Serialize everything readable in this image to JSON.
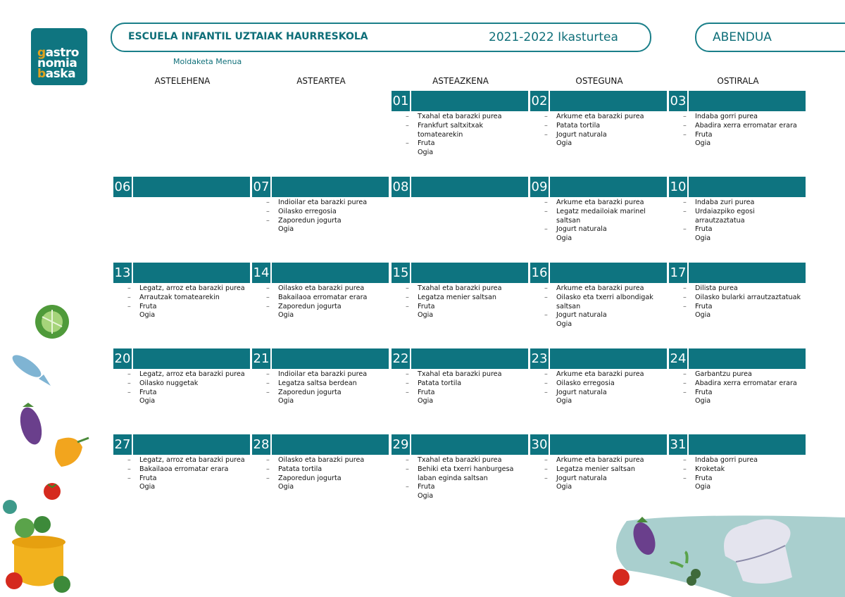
{
  "logo": {
    "lines": [
      "gastro",
      "nomia",
      "baska"
    ]
  },
  "header": {
    "school": "ESCUELA INFANTIL UZTAIAK HAURRESKOLA",
    "year": "2021-2022 Ikasturtea",
    "month": "ABENDUA",
    "subtitle": "Moldaketa Menua"
  },
  "colors": {
    "accent": "#0e7480",
    "title": "#0f6f79",
    "logo_highlight": "#e2a21d"
  },
  "weekdays": [
    "ASTELEHENA",
    "ASTEARTEA",
    "ASTEAZKENA",
    "OSTEGUNA",
    "OSTIRALA"
  ],
  "weeks": [
    [
      null,
      null,
      {
        "day": "01",
        "items": [
          {
            "text": "Txahal eta barazki purea",
            "dash": true
          },
          {
            "text": "Frankfurt saltxitxak\ntomatearekin",
            "dash": true
          },
          {
            "text": "Fruta",
            "dash": true
          },
          {
            "text": "Ogia",
            "dash": false
          }
        ]
      },
      {
        "day": "02",
        "items": [
          {
            "text": "Arkume eta barazki purea",
            "dash": true
          },
          {
            "text": "Patata tortila",
            "dash": true
          },
          {
            "text": "Jogurt naturala",
            "dash": true
          },
          {
            "text": "Ogia",
            "dash": false
          }
        ]
      },
      {
        "day": "03",
        "items": [
          {
            "text": "Indaba gorri purea",
            "dash": true
          },
          {
            "text": "Abadira xerra erromatar erara",
            "dash": true
          },
          {
            "text": "Fruta",
            "dash": true
          },
          {
            "text": "Ogia",
            "dash": false
          }
        ]
      }
    ],
    [
      {
        "day": "06",
        "items": []
      },
      {
        "day": "07",
        "items": [
          {
            "text": "Indioilar eta barazki purea",
            "dash": true
          },
          {
            "text": "Oilasko erregosia",
            "dash": true
          },
          {
            "text": "Zaporedun jogurta",
            "dash": true
          },
          {
            "text": "Ogia",
            "dash": false
          }
        ]
      },
      {
        "day": "08",
        "items": []
      },
      {
        "day": "09",
        "items": [
          {
            "text": "Arkume eta barazki purea",
            "dash": true
          },
          {
            "text": "Legatz medailoiak marinel\nsaltsan",
            "dash": true
          },
          {
            "text": "Jogurt naturala",
            "dash": true
          },
          {
            "text": "Ogia",
            "dash": false
          }
        ]
      },
      {
        "day": "10",
        "items": [
          {
            "text": "Indaba zuri purea",
            "dash": true
          },
          {
            "text": "Urdaiazpiko egosi\narrautzaztatua",
            "dash": true
          },
          {
            "text": "Fruta",
            "dash": true
          },
          {
            "text": "Ogia",
            "dash": false
          }
        ]
      }
    ],
    [
      {
        "day": "13",
        "items": [
          {
            "text": "Legatz, arroz eta barazki purea",
            "dash": true
          },
          {
            "text": "Arrautzak tomatearekin",
            "dash": true
          },
          {
            "text": "Fruta",
            "dash": true
          },
          {
            "text": "Ogia",
            "dash": false
          }
        ]
      },
      {
        "day": "14",
        "items": [
          {
            "text": "Oilasko eta barazki purea",
            "dash": true
          },
          {
            "text": "Bakailaoa erromatar erara",
            "dash": true
          },
          {
            "text": "Zaporedun jogurta",
            "dash": true
          },
          {
            "text": "Ogia",
            "dash": false
          }
        ]
      },
      {
        "day": "15",
        "items": [
          {
            "text": "Txahal eta barazki purea",
            "dash": true
          },
          {
            "text": "Legatza menier saltsan",
            "dash": true
          },
          {
            "text": "Fruta",
            "dash": true
          },
          {
            "text": "Ogia",
            "dash": false
          }
        ]
      },
      {
        "day": "16",
        "items": [
          {
            "text": "Arkume eta barazki purea",
            "dash": true
          },
          {
            "text": "Oilasko eta txerri albondigak\nsaltsan",
            "dash": true
          },
          {
            "text": "Jogurt naturala",
            "dash": true
          },
          {
            "text": "Ogia",
            "dash": false
          }
        ]
      },
      {
        "day": "17",
        "items": [
          {
            "text": "Dilista purea",
            "dash": true
          },
          {
            "text": "Oilasko bularki arrautzaztatuak",
            "dash": true
          },
          {
            "text": "Fruta",
            "dash": true
          },
          {
            "text": "Ogia",
            "dash": false
          }
        ]
      }
    ],
    [
      {
        "day": "20",
        "items": [
          {
            "text": "Legatz, arroz eta barazki purea",
            "dash": true
          },
          {
            "text": "Oilasko nuggetak",
            "dash": true
          },
          {
            "text": "Fruta",
            "dash": true
          },
          {
            "text": "Ogia",
            "dash": false
          }
        ]
      },
      {
        "day": "21",
        "items": [
          {
            "text": "Indioilar eta barazki purea",
            "dash": true
          },
          {
            "text": "Legatza saltsa berdean",
            "dash": true
          },
          {
            "text": "Zaporedun jogurta",
            "dash": true
          },
          {
            "text": "Ogia",
            "dash": false
          }
        ]
      },
      {
        "day": "22",
        "items": [
          {
            "text": "Txahal eta barazki purea",
            "dash": true
          },
          {
            "text": "Patata tortila",
            "dash": true
          },
          {
            "text": "Fruta",
            "dash": true
          },
          {
            "text": "Ogia",
            "dash": false
          }
        ]
      },
      {
        "day": "23",
        "items": [
          {
            "text": "Arkume eta barazki purea",
            "dash": true
          },
          {
            "text": "Oilasko erregosia",
            "dash": true
          },
          {
            "text": "Jogurt naturala",
            "dash": true
          },
          {
            "text": "Ogia",
            "dash": false
          }
        ]
      },
      {
        "day": "24",
        "items": [
          {
            "text": "Garbantzu purea",
            "dash": true
          },
          {
            "text": "Abadira xerra erromatar erara",
            "dash": true
          },
          {
            "text": "Fruta",
            "dash": true
          },
          {
            "text": "Ogia",
            "dash": false
          }
        ]
      }
    ],
    [
      {
        "day": "27",
        "items": [
          {
            "text": "Legatz, arroz eta barazki purea",
            "dash": true
          },
          {
            "text": "Bakailaoa erromatar erara",
            "dash": true
          },
          {
            "text": "Fruta",
            "dash": true
          },
          {
            "text": "Ogia",
            "dash": false
          }
        ]
      },
      {
        "day": "28",
        "items": [
          {
            "text": "Oilasko eta barazki purea",
            "dash": true
          },
          {
            "text": "Patata tortila",
            "dash": true
          },
          {
            "text": "Zaporedun jogurta",
            "dash": true
          },
          {
            "text": "Ogia",
            "dash": false
          }
        ]
      },
      {
        "day": "29",
        "items": [
          {
            "text": "Txahal eta barazki purea",
            "dash": true
          },
          {
            "text": "Behiki eta txerri hanburgesa\nlaban eginda saltsan",
            "dash": true
          },
          {
            "text": "Fruta",
            "dash": true
          },
          {
            "text": "Ogia",
            "dash": false
          }
        ]
      },
      {
        "day": "30",
        "items": [
          {
            "text": "Arkume eta barazki purea",
            "dash": true
          },
          {
            "text": "Legatza menier saltsan",
            "dash": true
          },
          {
            "text": "Jogurt naturala",
            "dash": true
          },
          {
            "text": "Ogia",
            "dash": false
          }
        ]
      },
      {
        "day": "31",
        "items": [
          {
            "text": "Indaba gorri purea",
            "dash": true
          },
          {
            "text": "Kroketak",
            "dash": true
          },
          {
            "text": "Fruta",
            "dash": true
          },
          {
            "text": "Ogia",
            "dash": false
          }
        ]
      }
    ]
  ]
}
